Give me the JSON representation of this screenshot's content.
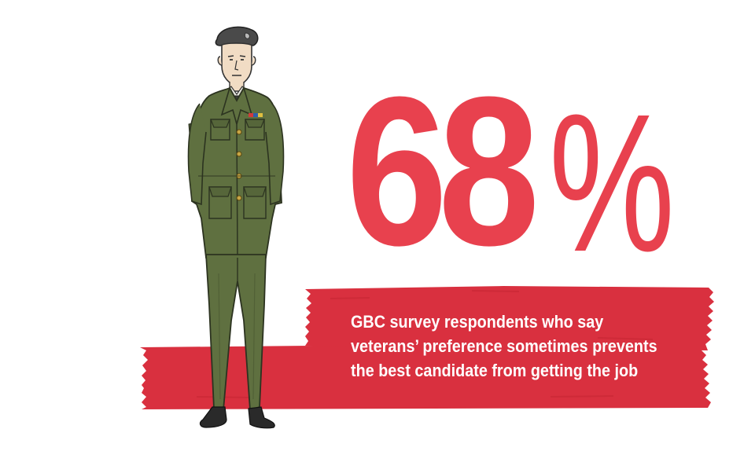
{
  "stat": {
    "digits": "68",
    "percent_sign": "%"
  },
  "caption": {
    "line1": "GBC survey respondents who say",
    "line2": "veterans’ preference sometimes prevents",
    "line3": "the best candidate from getting the job"
  },
  "colors": {
    "accent": "#e8414e",
    "banner": "#d9303f",
    "uniform": "#5f7040",
    "text_on_banner": "#ffffff"
  },
  "illustration": {
    "subject": "soldier-in-uniform"
  }
}
